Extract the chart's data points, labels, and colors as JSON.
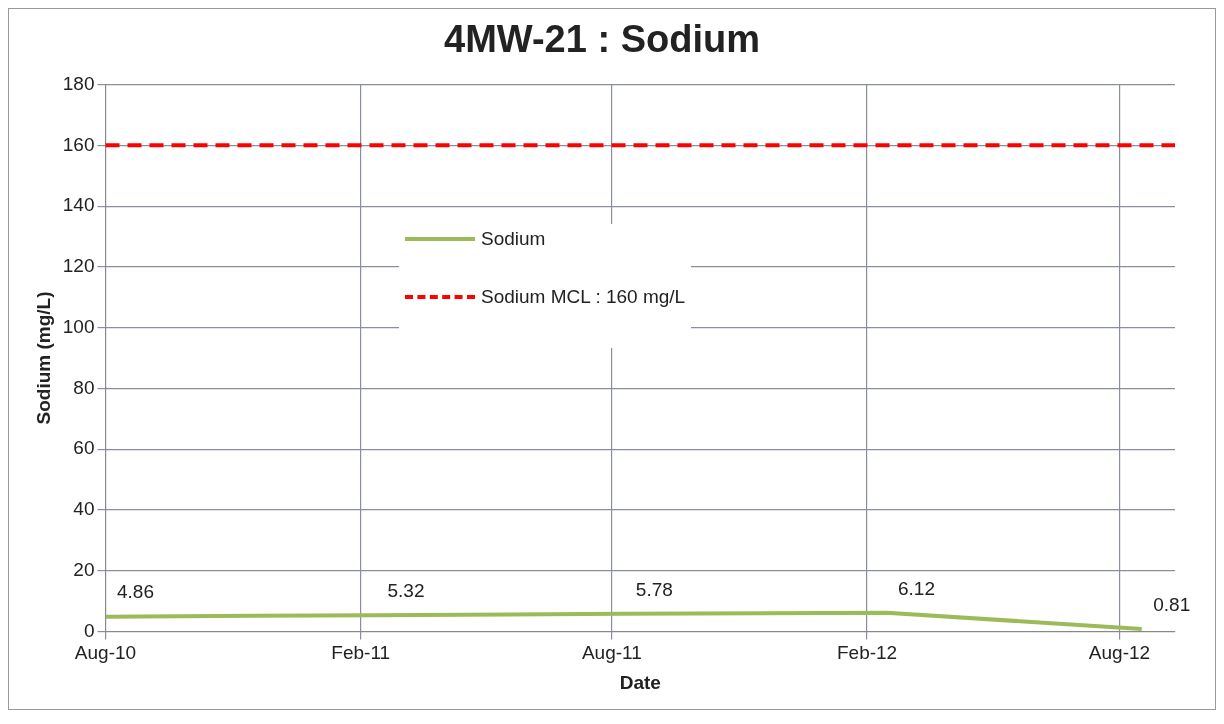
{
  "chart_data": {
    "type": "line",
    "title": "4MW-21 : Sodium",
    "xlabel": "Date",
    "ylabel": "Sodium (mg/L)",
    "x": [
      "2010-08-01",
      "2011-02-12",
      "2011-08-10",
      "2012-02-15",
      "2012-08-17"
    ],
    "series": [
      {
        "name": "Sodium",
        "color": "#9bbb59",
        "values": [
          4.86,
          5.32,
          5.78,
          6.12,
          0.81
        ]
      }
    ],
    "xlim": [
      "2010-08-01",
      "2012-09-10"
    ],
    "xticks": [
      {
        "value": "2010-08-01",
        "label": "Aug-10"
      },
      {
        "value": "2011-02-01",
        "label": "Feb-11"
      },
      {
        "value": "2011-08-01",
        "label": "Aug-11"
      },
      {
        "value": "2012-02-01",
        "label": "Feb-12"
      },
      {
        "value": "2012-08-01",
        "label": "Aug-12"
      }
    ],
    "ylim": [
      0,
      180
    ],
    "yticks": [
      0,
      20,
      40,
      60,
      80,
      100,
      120,
      140,
      160,
      180
    ],
    "ref_lines": [
      {
        "axis": "y",
        "value": 160,
        "label": "Sodium MCL : 160 mg/L",
        "color": "#ff0000",
        "line_style": "dashed"
      }
    ],
    "grid": true,
    "legend": "top",
    "data_labels": true,
    "marker": "none",
    "line_style": "solid"
  }
}
